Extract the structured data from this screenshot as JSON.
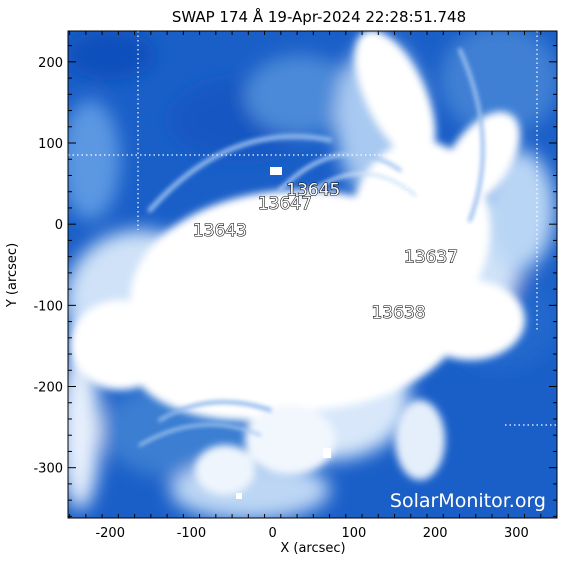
{
  "title": "SWAP 174 Å 19-Apr-2024 22:28:51.748",
  "xlabel": "X (arcsec)",
  "ylabel": "Y (arcsec)",
  "x_ticks": [
    "-200",
    "-100",
    "0",
    "100",
    "200",
    "300"
  ],
  "y_ticks": [
    "200",
    "100",
    "0",
    "-100",
    "-200",
    "-300"
  ],
  "x_range": [
    -252,
    350
  ],
  "y_range": [
    -362,
    238
  ],
  "regions": [
    {
      "label": "13645",
      "x": 50,
      "y": 43
    },
    {
      "label": "13647",
      "x": 15,
      "y": 26
    },
    {
      "label": "13643",
      "x": -65,
      "y": -7
    },
    {
      "label": "13637",
      "x": 195,
      "y": -40
    },
    {
      "label": "13638",
      "x": 155,
      "y": -108
    }
  ],
  "watermark": "SolarMonitor.org",
  "colors": {
    "deep": "#1a5fc8",
    "mid": "#5b97e2",
    "light": "#cfe2f8",
    "bright": "#ffffff",
    "grid": "#ffffff"
  }
}
